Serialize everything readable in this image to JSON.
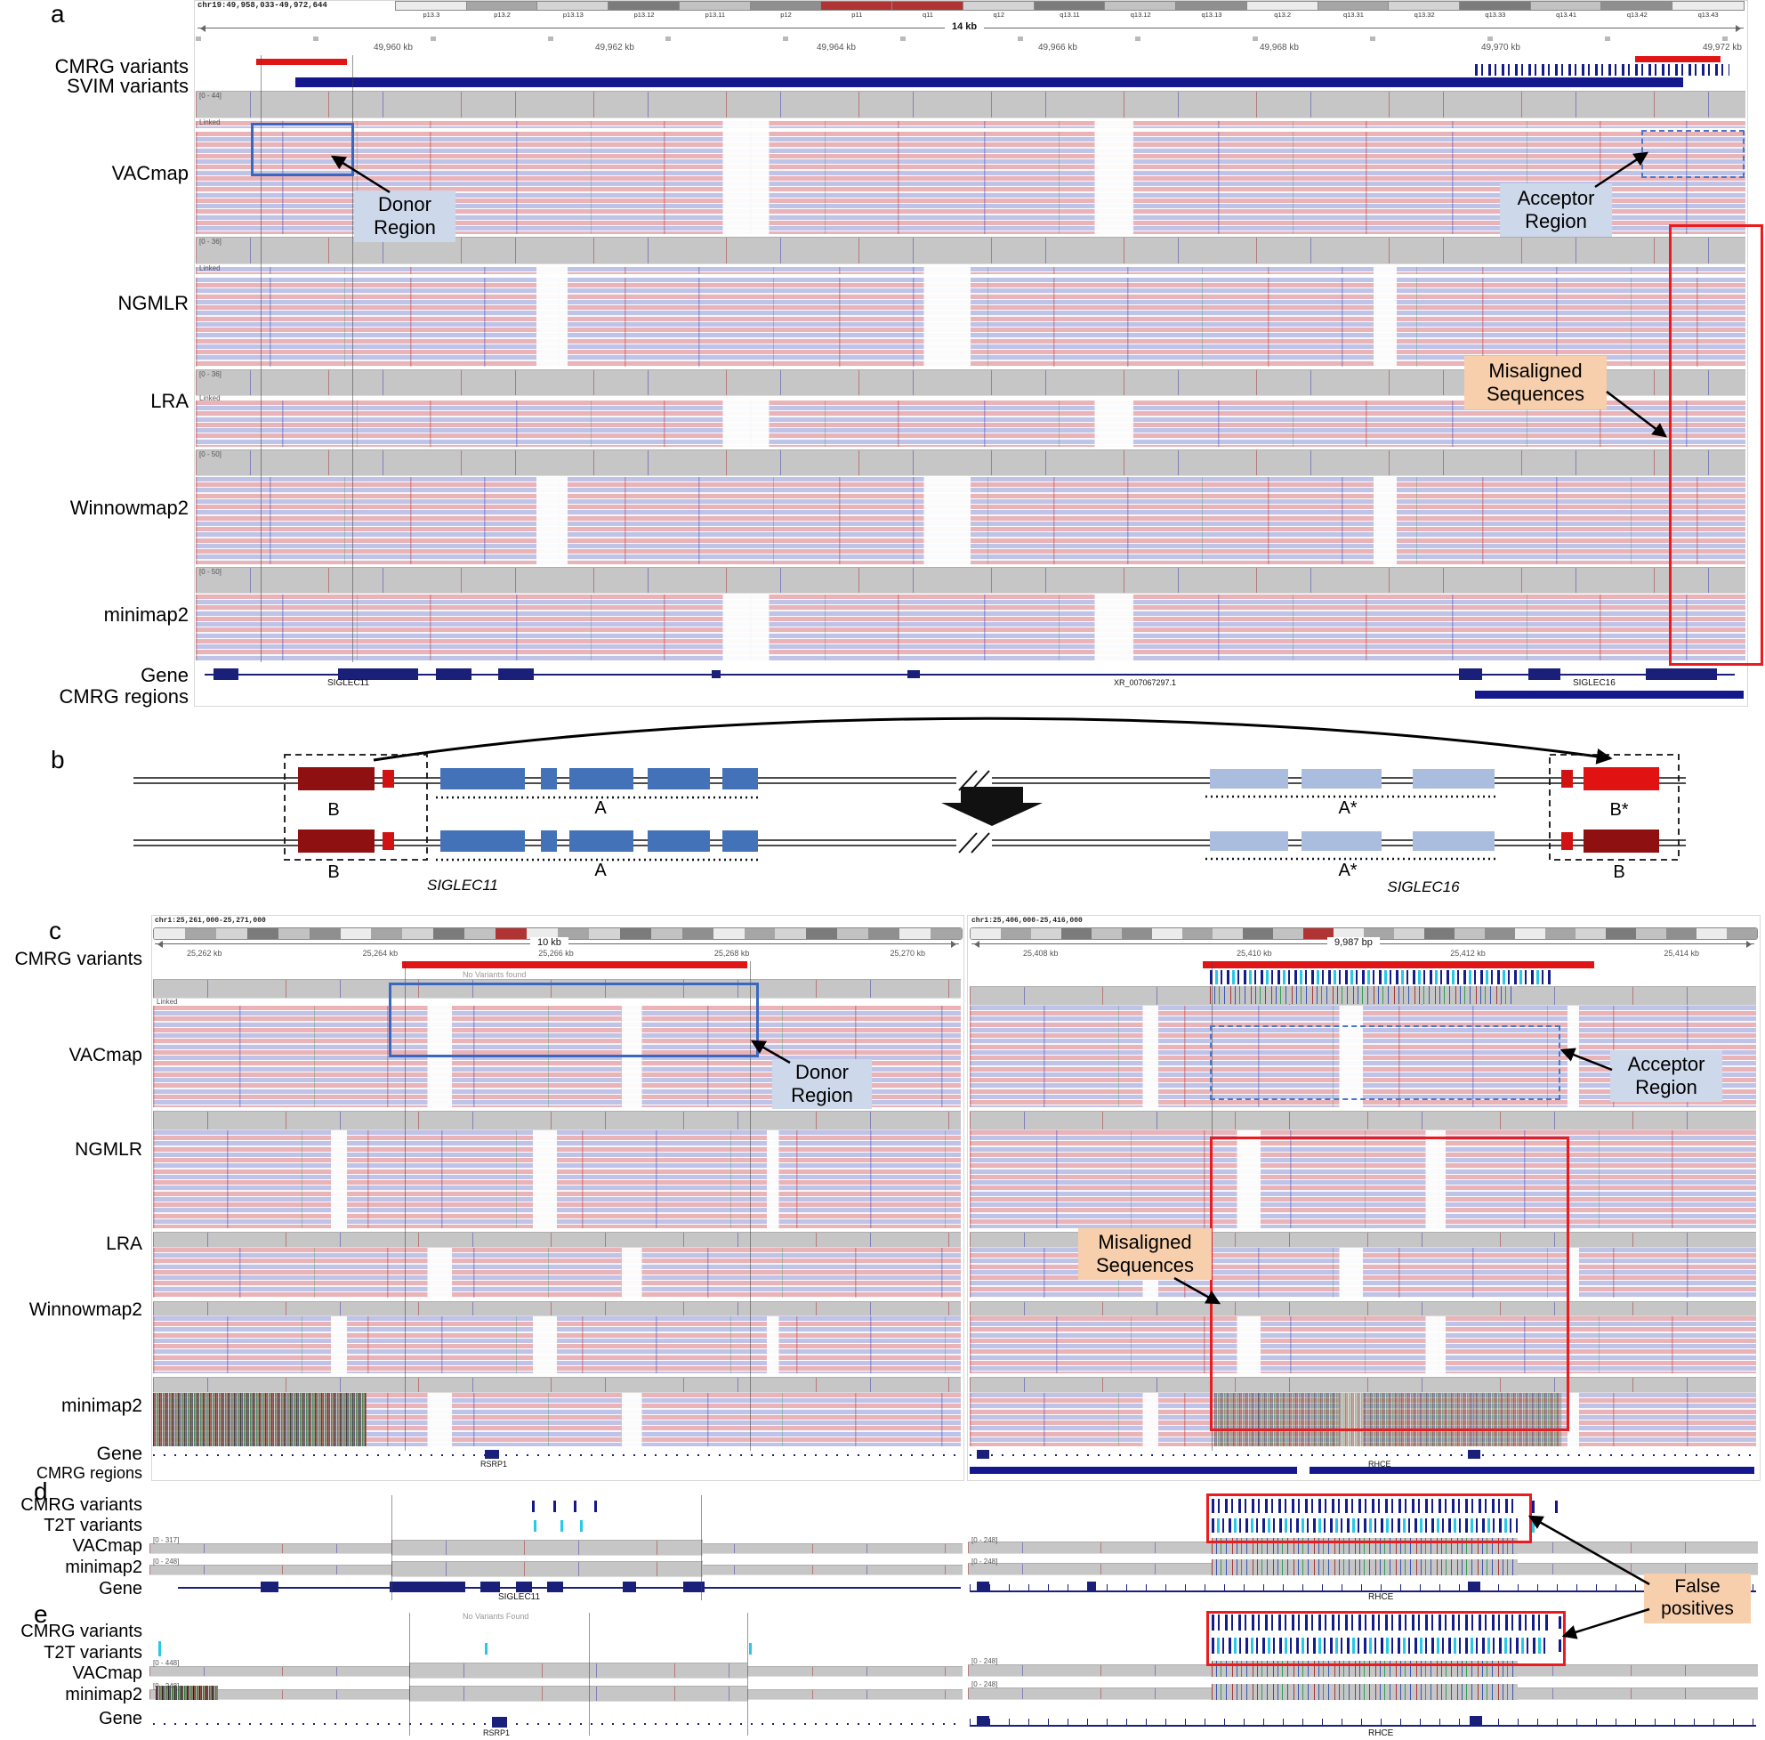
{
  "figure": {
    "letters": {
      "a": "a",
      "b": "b",
      "c": "c",
      "d": "d",
      "e": "e"
    }
  },
  "panel_a": {
    "locus": "chr19:49,958,033-49,972,644",
    "ideogram_bands": [
      "p13.3",
      "p13.2",
      "p13.13",
      "p13.12",
      "p13.11",
      "p12",
      "p11",
      "q11",
      "q12",
      "q13.11",
      "q13.12",
      "q13.13",
      "q13.2",
      "q13.31",
      "q13.32",
      "q13.33",
      "q13.41",
      "q13.42",
      "q13.43"
    ],
    "ruler_span": "14 kb",
    "ruler_ticks": [
      "49,960 kb",
      "49,962 kb",
      "49,964 kb",
      "49,966 kb",
      "49,968 kb",
      "49,970 kb",
      "49,972 kb"
    ],
    "track_labels": [
      "CMRG variants",
      "SVIM variants",
      "VACmap",
      "NGMLR",
      "LRA",
      "Winnowmap2",
      "minimap2",
      "Gene",
      "CMRG regions"
    ],
    "coverage_ranges": {
      "vacmap": "[0 - 44]",
      "ngmlr": "[0 - 36]",
      "lra": "[0 - 36]",
      "winnowmap2": "[0 - 50]",
      "minimap2": "[0 - 50]"
    },
    "linked": "Linked",
    "annotations": {
      "donor": "Donor Region",
      "acceptor": "Acceptor Region",
      "misaligned": "Misaligned Sequences"
    },
    "genes": {
      "siglec11": "SIGLEC11",
      "xr": "XR_007067297.1",
      "siglec16": "SIGLEC16"
    }
  },
  "panel_b": {
    "b": "B",
    "a": "A",
    "a_star": "A*",
    "b_star": "B*",
    "gene_left": "SIGLEC11",
    "gene_right": "SIGLEC16"
  },
  "panel_c": {
    "track_labels": [
      "CMRG variants",
      "VACmap",
      "NGMLR",
      "LRA",
      "Winnowmap2",
      "minimap2",
      "Gene",
      "CMRG regions"
    ],
    "left": {
      "locus": "chr1:25,261,000-25,271,000",
      "ruler_span": "10 kb",
      "ruler_ticks": [
        "25,262 kb",
        "25,264 kb",
        "25,266 kb",
        "25,268 kb",
        "25,270 kb"
      ],
      "no_variants": "No Variants found",
      "gene": "RSRP1"
    },
    "right": {
      "locus": "chr1:25,406,000-25,416,000",
      "ruler_span": "9,987 bp",
      "ruler_ticks": [
        "25,408 kb",
        "25,410 kb",
        "25,412 kb",
        "25,414 kb"
      ],
      "gene": "RHCE"
    },
    "annotations": {
      "donor": "Donor Region",
      "acceptor": "Acceptor Region",
      "misaligned": "Misaligned Sequences"
    }
  },
  "panel_d": {
    "track_labels": [
      "CMRG variants",
      "T2T variants",
      "VACmap",
      "minimap2",
      "Gene"
    ],
    "left_gene": "SIGLEC11",
    "right_gene": "RHCE",
    "ranges": {
      "vacmap": "[0 - 317]",
      "minimap2": "[0 - 248]"
    },
    "false_positives": "False positives"
  },
  "panel_e": {
    "track_labels": [
      "CMRG variants",
      "T2T variants",
      "VACmap",
      "minimap2",
      "Gene"
    ],
    "no_variants": "No Variants Found",
    "left_gene": "RSRP1",
    "right_gene": "RHCE",
    "ranges": {
      "vacmap": "[0 - 448]",
      "minimap2": "[0 - 248]"
    }
  }
}
